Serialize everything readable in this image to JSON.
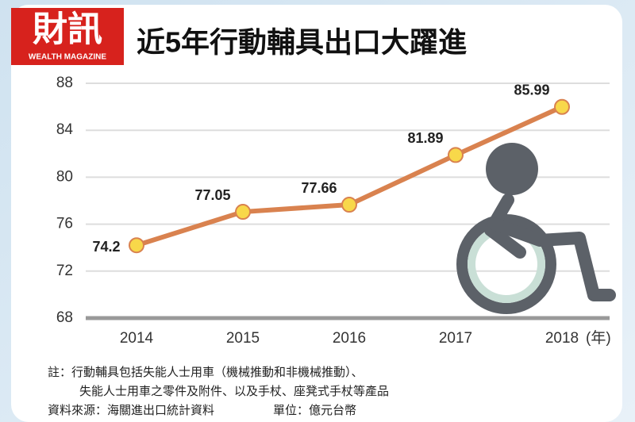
{
  "chart_data": {
    "type": "line",
    "title": "近5年行動輔具出口大躍進",
    "logo": {
      "name": "財訊",
      "subtitle": "WEALTH MAGAZINE"
    },
    "categories": [
      "2014",
      "2015",
      "2016",
      "2017",
      "2018"
    ],
    "x_unit": "(年)",
    "series": [
      {
        "name": "行動輔具出口",
        "color": "#d9824f",
        "values": [
          74.2,
          77.05,
          77.66,
          81.89,
          85.99
        ]
      }
    ],
    "ylim": [
      68,
      88
    ],
    "yticks": [
      68,
      72,
      76,
      80,
      84,
      88
    ],
    "grid": true,
    "notes": [
      "註：行動輔具包括失能人士用車（機械推動和非機械推動）、",
      "失能人士用車之零件及附件、以及手杖、座凳式手杖等產品"
    ],
    "source": "資料來源：海關進出口統計資料",
    "unit": "單位：億元台幣"
  }
}
